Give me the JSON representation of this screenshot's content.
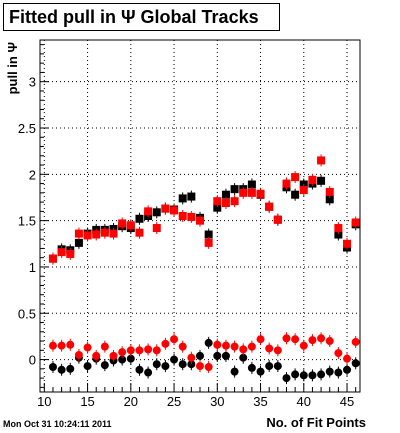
{
  "title": "Fitted pull in  Ψ   Global Tracks",
  "footer": "Mon Oct 31 10:24:11 2011",
  "chart_data": {
    "type": "scatter",
    "title": "Fitted pull in  Ψ   Global Tracks",
    "xlabel": "No. of Fit Points",
    "ylabel": "pull in Ψ",
    "xlim": [
      9.5,
      46.5
    ],
    "ylim": [
      -0.35,
      3.45
    ],
    "xticks": [
      "10",
      "15",
      "20",
      "25",
      "30",
      "35",
      "40",
      "45"
    ],
    "yticks": [
      "0",
      "0.5",
      "1",
      "1.5",
      "2",
      "2.5",
      "3"
    ],
    "grid": true,
    "series": [
      {
        "color": "#000000",
        "marker": "square",
        "x": [
          11,
          12,
          13,
          14,
          15,
          16,
          17,
          18,
          19,
          20,
          21,
          22,
          23,
          24,
          25,
          26,
          27,
          28,
          29,
          30,
          31,
          32,
          33,
          34,
          35,
          36,
          37,
          38,
          39,
          40,
          41,
          42,
          43,
          44,
          45,
          46
        ],
        "y": [
          1.09,
          1.19,
          1.18,
          1.26,
          1.36,
          1.4,
          1.4,
          1.41,
          1.44,
          1.42,
          1.52,
          1.55,
          1.59,
          1.63,
          1.62,
          1.74,
          1.76,
          1.53,
          1.35,
          1.64,
          1.78,
          1.84,
          1.84,
          1.89,
          1.78,
          1.65,
          1.51,
          1.86,
          1.78,
          1.89,
          1.9,
          1.93,
          1.73,
          1.35,
          1.21,
          1.46
        ]
      },
      {
        "color": "#ff0000",
        "marker": "square",
        "x": [
          11,
          12,
          13,
          14,
          15,
          16,
          17,
          18,
          19,
          20,
          21,
          22,
          23,
          24,
          25,
          26,
          27,
          28,
          29,
          30,
          31,
          32,
          33,
          34,
          35,
          36,
          37,
          38,
          39,
          40,
          41,
          42,
          43,
          44,
          45,
          46
        ],
        "y": [
          1.09,
          1.16,
          1.14,
          1.36,
          1.34,
          1.35,
          1.37,
          1.36,
          1.47,
          1.45,
          1.37,
          1.6,
          1.42,
          1.63,
          1.61,
          1.55,
          1.54,
          1.5,
          1.26,
          1.71,
          1.69,
          1.71,
          1.8,
          1.8,
          1.79,
          1.65,
          1.51,
          1.9,
          1.97,
          1.83,
          1.94,
          2.15,
          1.81,
          1.42,
          1.25,
          1.48
        ]
      },
      {
        "color": "#000000",
        "marker": "circle",
        "x": [
          11,
          12,
          13,
          14,
          15,
          16,
          17,
          18,
          19,
          20,
          21,
          22,
          23,
          24,
          25,
          26,
          27,
          28,
          29,
          30,
          31,
          32,
          33,
          34,
          35,
          36,
          37,
          38,
          39,
          40,
          41,
          42,
          43,
          44,
          45,
          46
        ],
        "y": [
          -0.08,
          -0.11,
          -0.1,
          0.02,
          -0.07,
          0.01,
          -0.06,
          -0.01,
          0.0,
          0.01,
          -0.11,
          -0.14,
          -0.05,
          -0.07,
          0.0,
          -0.05,
          -0.05,
          0.04,
          0.18,
          0.04,
          0.04,
          -0.13,
          0.02,
          -0.09,
          -0.13,
          -0.07,
          -0.07,
          -0.2,
          -0.16,
          -0.17,
          -0.17,
          -0.16,
          -0.13,
          -0.14,
          -0.11,
          -0.04
        ]
      },
      {
        "color": "#ff0000",
        "marker": "circle",
        "x": [
          11,
          12,
          13,
          14,
          15,
          16,
          17,
          18,
          19,
          20,
          21,
          22,
          23,
          24,
          25,
          26,
          27,
          28,
          29,
          30,
          31,
          32,
          33,
          34,
          35,
          36,
          37,
          38,
          39,
          40,
          41,
          42,
          43,
          44,
          45,
          46
        ],
        "y": [
          0.15,
          0.15,
          0.16,
          0.05,
          0.13,
          0.04,
          0.14,
          0.04,
          0.08,
          0.1,
          0.1,
          0.11,
          0.1,
          0.17,
          0.22,
          0.14,
          0.02,
          -0.07,
          -0.08,
          0.16,
          0.15,
          0.14,
          0.11,
          0.14,
          0.22,
          0.12,
          0.1,
          0.23,
          0.22,
          0.15,
          0.21,
          0.23,
          0.2,
          0.07,
          0.01,
          0.19
        ]
      }
    ]
  }
}
